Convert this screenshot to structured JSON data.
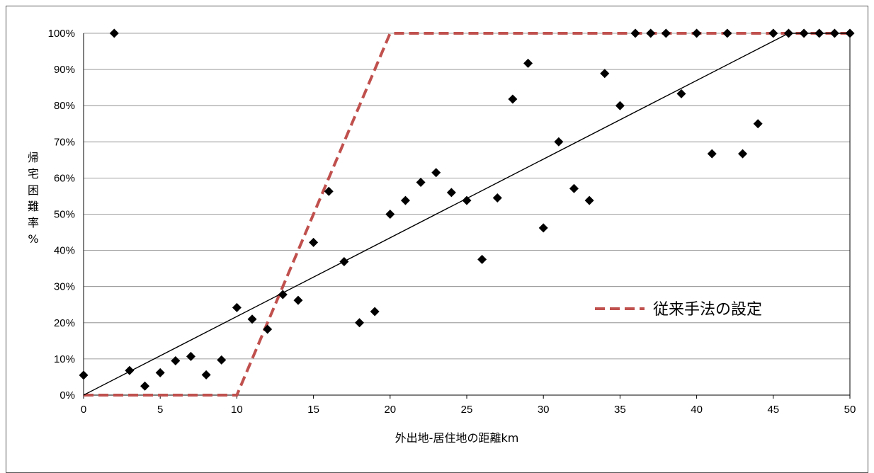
{
  "chart_data": {
    "type": "scatter",
    "xlabel": "外出地-居住地の距離km",
    "ylabel_chars": [
      "帰",
      "宅",
      "困",
      "難",
      "率",
      "%"
    ],
    "xlim": [
      0,
      50
    ],
    "ylim": [
      0,
      100
    ],
    "x_ticks": [
      0,
      5,
      10,
      15,
      20,
      25,
      30,
      35,
      40,
      45,
      50
    ],
    "y_ticks": [
      0,
      10,
      20,
      30,
      40,
      50,
      60,
      70,
      80,
      90,
      100
    ],
    "y_tick_suffix": "%",
    "grid": "horizontal",
    "legend_position": "middle-right",
    "points": [
      [
        0,
        5.5
      ],
      [
        2,
        100
      ],
      [
        3,
        6.8
      ],
      [
        4,
        2.5
      ],
      [
        5,
        6.2
      ],
      [
        6,
        9.5
      ],
      [
        7,
        10.7
      ],
      [
        8,
        5.6
      ],
      [
        9,
        9.7
      ],
      [
        10,
        24.2
      ],
      [
        11,
        21
      ],
      [
        12,
        18.2
      ],
      [
        13,
        27.8
      ],
      [
        14,
        26.2
      ],
      [
        15,
        42.2
      ],
      [
        16,
        56.3
      ],
      [
        17,
        36.9
      ],
      [
        18,
        20
      ],
      [
        19,
        23.1
      ],
      [
        20,
        50
      ],
      [
        21,
        53.8
      ],
      [
        22,
        58.8
      ],
      [
        23,
        61.5
      ],
      [
        24,
        56
      ],
      [
        25,
        53.8
      ],
      [
        26,
        37.5
      ],
      [
        27,
        54.5
      ],
      [
        28,
        81.8
      ],
      [
        29,
        91.7
      ],
      [
        30,
        46.2
      ],
      [
        31,
        70
      ],
      [
        32,
        57.1
      ],
      [
        33,
        53.8
      ],
      [
        34,
        88.9
      ],
      [
        35,
        80
      ],
      [
        36,
        100
      ],
      [
        37,
        100
      ],
      [
        38,
        100
      ],
      [
        39,
        83.3
      ],
      [
        40,
        100
      ],
      [
        41,
        66.7
      ],
      [
        42,
        100
      ],
      [
        43,
        66.7
      ],
      [
        44,
        75
      ],
      [
        45,
        100
      ],
      [
        46,
        100
      ],
      [
        47,
        100
      ],
      [
        48,
        100
      ],
      [
        49,
        100
      ],
      [
        50,
        100
      ]
    ],
    "trendline": [
      [
        0,
        0
      ],
      [
        46,
        100
      ],
      [
        50,
        100
      ]
    ],
    "series": [
      {
        "name": "従来手法の設定",
        "style": "dashed",
        "color": "#c0504d",
        "points": [
          [
            0,
            0
          ],
          [
            10,
            0
          ],
          [
            20,
            100
          ],
          [
            50,
            100
          ]
        ]
      }
    ],
    "colors": {
      "markers": "#000000",
      "trendline": "#000000",
      "grid": "#808080"
    }
  }
}
